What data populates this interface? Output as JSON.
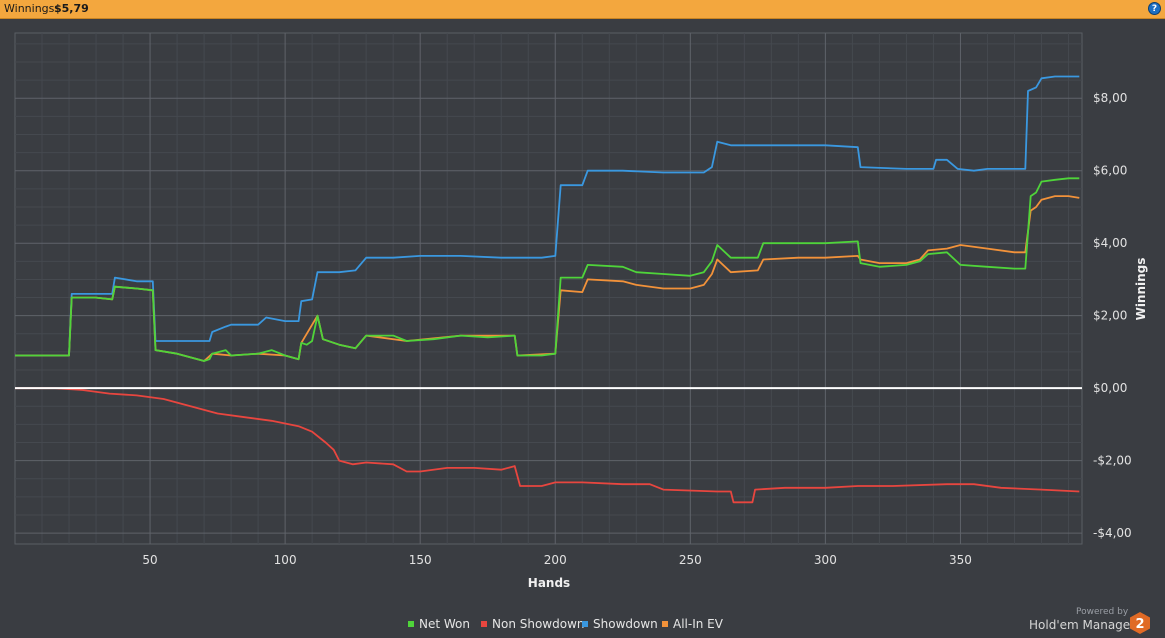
{
  "header": {
    "winnings_label": "Winnings:",
    "winnings_value": "$5,79",
    "help_icon": "question-icon"
  },
  "chart_data": {
    "type": "line",
    "xlabel": "Hands",
    "ylabel": "Winnings",
    "xlim": [
      0,
      395
    ],
    "ylim": [
      -4.3,
      9.8
    ],
    "x_ticks": [
      {
        "value": 50,
        "label": "50"
      },
      {
        "value": 100,
        "label": "100"
      },
      {
        "value": 150,
        "label": "150"
      },
      {
        "value": 200,
        "label": "200"
      },
      {
        "value": 250,
        "label": "250"
      },
      {
        "value": 300,
        "label": "300"
      },
      {
        "value": 350,
        "label": "350"
      }
    ],
    "y_ticks": [
      {
        "value": 8,
        "label": "$8,00"
      },
      {
        "value": 6,
        "label": "$6,00"
      },
      {
        "value": 4,
        "label": "$4,00"
      },
      {
        "value": 2,
        "label": "$2,00"
      },
      {
        "value": 0,
        "label": "$0,00"
      },
      {
        "value": -2,
        "label": "-$2,00"
      },
      {
        "value": -4,
        "label": "-$4,00"
      }
    ],
    "grid": true,
    "legend_position": "bottom-center",
    "series": [
      {
        "name": "Net Won",
        "color": "#4fd43a",
        "points": [
          [
            0,
            0.9
          ],
          [
            10,
            0.9
          ],
          [
            20,
            0.9
          ],
          [
            21,
            2.5
          ],
          [
            30,
            2.5
          ],
          [
            36,
            2.45
          ],
          [
            37,
            2.8
          ],
          [
            45,
            2.75
          ],
          [
            51,
            2.7
          ],
          [
            52,
            1.05
          ],
          [
            60,
            0.95
          ],
          [
            65,
            0.85
          ],
          [
            70,
            0.75
          ],
          [
            72,
            0.8
          ],
          [
            73,
            0.95
          ],
          [
            78,
            1.05
          ],
          [
            80,
            0.9
          ],
          [
            90,
            0.95
          ],
          [
            95,
            1.05
          ],
          [
            100,
            0.9
          ],
          [
            105,
            0.8
          ],
          [
            106,
            1.25
          ],
          [
            108,
            1.2
          ],
          [
            110,
            1.3
          ],
          [
            112,
            2.0
          ],
          [
            114,
            1.35
          ],
          [
            120,
            1.2
          ],
          [
            126,
            1.1
          ],
          [
            130,
            1.45
          ],
          [
            140,
            1.45
          ],
          [
            145,
            1.3
          ],
          [
            155,
            1.35
          ],
          [
            165,
            1.45
          ],
          [
            175,
            1.4
          ],
          [
            185,
            1.45
          ],
          [
            186,
            0.9
          ],
          [
            195,
            0.9
          ],
          [
            200,
            0.95
          ],
          [
            202,
            3.05
          ],
          [
            210,
            3.05
          ],
          [
            212,
            3.4
          ],
          [
            225,
            3.35
          ],
          [
            230,
            3.2
          ],
          [
            240,
            3.15
          ],
          [
            250,
            3.1
          ],
          [
            255,
            3.2
          ],
          [
            258,
            3.5
          ],
          [
            260,
            3.95
          ],
          [
            265,
            3.6
          ],
          [
            275,
            3.6
          ],
          [
            277,
            4.0
          ],
          [
            290,
            4.0
          ],
          [
            300,
            4.0
          ],
          [
            312,
            4.05
          ],
          [
            313,
            3.45
          ],
          [
            320,
            3.35
          ],
          [
            330,
            3.4
          ],
          [
            335,
            3.5
          ],
          [
            338,
            3.7
          ],
          [
            345,
            3.75
          ],
          [
            350,
            3.4
          ],
          [
            360,
            3.35
          ],
          [
            370,
            3.3
          ],
          [
            374,
            3.3
          ],
          [
            376,
            5.3
          ],
          [
            378,
            5.4
          ],
          [
            380,
            5.7
          ],
          [
            385,
            5.75
          ],
          [
            390,
            5.79
          ],
          [
            394,
            5.79
          ]
        ]
      },
      {
        "name": "Non Showdown",
        "color": "#e8463f",
        "points": [
          [
            0,
            0
          ],
          [
            15,
            0
          ],
          [
            25,
            -0.05
          ],
          [
            35,
            -0.15
          ],
          [
            45,
            -0.2
          ],
          [
            55,
            -0.3
          ],
          [
            65,
            -0.5
          ],
          [
            75,
            -0.7
          ],
          [
            85,
            -0.8
          ],
          [
            95,
            -0.9
          ],
          [
            105,
            -1.05
          ],
          [
            110,
            -1.2
          ],
          [
            115,
            -1.5
          ],
          [
            118,
            -1.7
          ],
          [
            120,
            -2.0
          ],
          [
            125,
            -2.1
          ],
          [
            130,
            -2.05
          ],
          [
            140,
            -2.1
          ],
          [
            145,
            -2.3
          ],
          [
            150,
            -2.3
          ],
          [
            160,
            -2.2
          ],
          [
            170,
            -2.2
          ],
          [
            180,
            -2.25
          ],
          [
            185,
            -2.15
          ],
          [
            187,
            -2.7
          ],
          [
            195,
            -2.7
          ],
          [
            200,
            -2.6
          ],
          [
            210,
            -2.6
          ],
          [
            225,
            -2.65
          ],
          [
            235,
            -2.65
          ],
          [
            240,
            -2.8
          ],
          [
            260,
            -2.85
          ],
          [
            265,
            -2.85
          ],
          [
            266,
            -3.15
          ],
          [
            273,
            -3.15
          ],
          [
            274,
            -2.8
          ],
          [
            285,
            -2.75
          ],
          [
            300,
            -2.75
          ],
          [
            312,
            -2.7
          ],
          [
            325,
            -2.7
          ],
          [
            345,
            -2.65
          ],
          [
            355,
            -2.65
          ],
          [
            365,
            -2.75
          ],
          [
            380,
            -2.8
          ],
          [
            394,
            -2.85
          ]
        ]
      },
      {
        "name": "Showdown",
        "color": "#3a98e0",
        "points": [
          [
            0,
            0.9
          ],
          [
            10,
            0.9
          ],
          [
            20,
            0.9
          ],
          [
            21,
            2.6
          ],
          [
            30,
            2.6
          ],
          [
            36,
            2.6
          ],
          [
            37,
            3.05
          ],
          [
            45,
            2.95
          ],
          [
            51,
            2.95
          ],
          [
            52,
            1.3
          ],
          [
            60,
            1.3
          ],
          [
            65,
            1.3
          ],
          [
            72,
            1.3
          ],
          [
            73,
            1.55
          ],
          [
            78,
            1.7
          ],
          [
            80,
            1.75
          ],
          [
            90,
            1.75
          ],
          [
            93,
            1.95
          ],
          [
            100,
            1.85
          ],
          [
            105,
            1.85
          ],
          [
            106,
            2.4
          ],
          [
            110,
            2.45
          ],
          [
            112,
            3.2
          ],
          [
            120,
            3.2
          ],
          [
            126,
            3.25
          ],
          [
            130,
            3.6
          ],
          [
            140,
            3.6
          ],
          [
            150,
            3.65
          ],
          [
            165,
            3.65
          ],
          [
            180,
            3.6
          ],
          [
            195,
            3.6
          ],
          [
            200,
            3.65
          ],
          [
            202,
            5.6
          ],
          [
            210,
            5.6
          ],
          [
            212,
            6.0
          ],
          [
            225,
            6.0
          ],
          [
            240,
            5.95
          ],
          [
            255,
            5.95
          ],
          [
            258,
            6.1
          ],
          [
            260,
            6.8
          ],
          [
            265,
            6.7
          ],
          [
            290,
            6.7
          ],
          [
            300,
            6.7
          ],
          [
            312,
            6.65
          ],
          [
            313,
            6.1
          ],
          [
            330,
            6.05
          ],
          [
            340,
            6.05
          ],
          [
            341,
            6.3
          ],
          [
            345,
            6.3
          ],
          [
            349,
            6.05
          ],
          [
            355,
            6.0
          ],
          [
            360,
            6.05
          ],
          [
            374,
            6.05
          ],
          [
            375,
            8.2
          ],
          [
            378,
            8.3
          ],
          [
            380,
            8.55
          ],
          [
            385,
            8.6
          ],
          [
            394,
            8.6
          ]
        ]
      },
      {
        "name": "All-In EV",
        "color": "#f2923a",
        "points": [
          [
            0,
            0.9
          ],
          [
            10,
            0.9
          ],
          [
            20,
            0.9
          ],
          [
            21,
            2.5
          ],
          [
            30,
            2.5
          ],
          [
            36,
            2.45
          ],
          [
            37,
            2.8
          ],
          [
            45,
            2.75
          ],
          [
            51,
            2.7
          ],
          [
            52,
            1.05
          ],
          [
            60,
            0.95
          ],
          [
            70,
            0.75
          ],
          [
            73,
            0.95
          ],
          [
            80,
            0.9
          ],
          [
            90,
            0.95
          ],
          [
            100,
            0.9
          ],
          [
            105,
            0.8
          ],
          [
            106,
            1.25
          ],
          [
            112,
            2.0
          ],
          [
            114,
            1.35
          ],
          [
            120,
            1.2
          ],
          [
            126,
            1.1
          ],
          [
            130,
            1.45
          ],
          [
            145,
            1.3
          ],
          [
            165,
            1.45
          ],
          [
            185,
            1.45
          ],
          [
            186,
            0.9
          ],
          [
            200,
            0.95
          ],
          [
            202,
            2.7
          ],
          [
            210,
            2.65
          ],
          [
            212,
            3.0
          ],
          [
            225,
            2.95
          ],
          [
            230,
            2.85
          ],
          [
            240,
            2.75
          ],
          [
            250,
            2.75
          ],
          [
            255,
            2.85
          ],
          [
            258,
            3.15
          ],
          [
            260,
            3.55
          ],
          [
            265,
            3.2
          ],
          [
            275,
            3.25
          ],
          [
            277,
            3.55
          ],
          [
            290,
            3.6
          ],
          [
            300,
            3.6
          ],
          [
            312,
            3.65
          ],
          [
            313,
            3.55
          ],
          [
            320,
            3.45
          ],
          [
            330,
            3.45
          ],
          [
            335,
            3.55
          ],
          [
            338,
            3.8
          ],
          [
            345,
            3.85
          ],
          [
            350,
            3.95
          ],
          [
            360,
            3.85
          ],
          [
            370,
            3.75
          ],
          [
            374,
            3.75
          ],
          [
            376,
            4.9
          ],
          [
            378,
            5.0
          ],
          [
            380,
            5.2
          ],
          [
            385,
            5.3
          ],
          [
            390,
            5.3
          ],
          [
            394,
            5.25
          ]
        ]
      }
    ]
  },
  "footer": {
    "powered_by": "Powered by",
    "brand": "Hold'em Manager",
    "brand_badge": "2"
  }
}
